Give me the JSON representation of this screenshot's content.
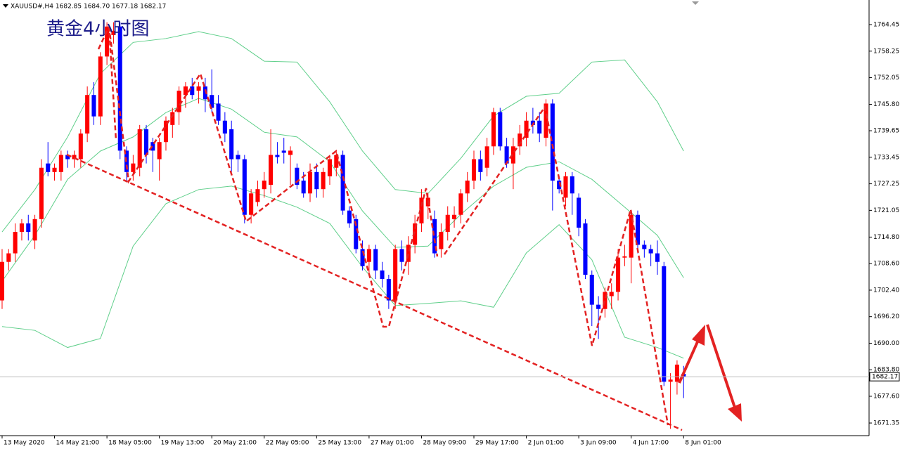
{
  "chart_data": {
    "type": "candlestick",
    "header": "XAUUSD#,H4  1682.85 1684.70 1677.18 1682.17",
    "title": "黄金4小时图",
    "up_color": "#ff0000",
    "down_color": "#0000ff",
    "current_price": 1682.17,
    "ylim": [
      1668.4,
      1770.2
    ],
    "xlim": [
      -0.32,
      132.3
    ],
    "yticks": [
      1671.35,
      {
        "value": 1677.6,
        "label": "1677.60"
      },
      {
        "value": 1683.8,
        "label": "1683.80"
      },
      {
        "value": 1690,
        "label": "1690.00"
      },
      {
        "value": 1696.2,
        "label": "1696.20"
      },
      {
        "value": 1702.4,
        "label": "1702.40"
      },
      {
        "value": 1708.6,
        "label": "1708.60"
      },
      {
        "value": 1714.8,
        "label": "1714.80"
      },
      1721.05,
      1727.25,
      1733.45,
      1739.65,
      {
        "value": 1745.8,
        "label": "1745.80"
      },
      1752.05,
      1758.25,
      1764.45
    ],
    "xticks": [
      {
        "value": 0,
        "label": "13 May 2020"
      },
      {
        "value": 8,
        "label": "14 May 21:00"
      },
      {
        "value": 16,
        "label": "18 May 05:00"
      },
      {
        "value": 24,
        "label": "19 May 13:00"
      },
      {
        "value": 32,
        "label": "20 May 21:00"
      },
      {
        "value": 40,
        "label": "22 May 05:00"
      },
      {
        "value": 48,
        "label": "25 May 13:00"
      },
      {
        "value": 56,
        "label": "27 May 01:00"
      },
      {
        "value": 64,
        "label": "28 May 09:00"
      },
      {
        "value": 72,
        "label": "29 May 17:00"
      },
      {
        "value": 80,
        "label": "2 Jun 01:00"
      },
      {
        "value": 88,
        "label": "3 Jun 09:00"
      },
      {
        "value": 96,
        "label": "4 Jun 17:00"
      },
      {
        "value": 104,
        "label": "8 Jun 01:00"
      }
    ],
    "ohlc": [
      [
        1700,
        1712,
        1698,
        1709
      ],
      [
        1709,
        1712,
        1707,
        1711
      ],
      [
        1711,
        1718,
        1709,
        1716
      ],
      [
        1716,
        1719,
        1714,
        1718
      ],
      [
        1718,
        1720,
        1714,
        1716
      ],
      [
        1714,
        1720,
        1712,
        1719
      ],
      [
        1719,
        1733,
        1717,
        1731
      ],
      [
        1732,
        1737,
        1729,
        1730
      ],
      [
        1730,
        1732,
        1728,
        1731
      ],
      [
        1730,
        1735,
        1728,
        1734
      ],
      [
        1734,
        1735,
        1731,
        1733
      ],
      [
        1733,
        1735,
        1731,
        1734
      ],
      [
        1733,
        1740,
        1731,
        1739
      ],
      [
        1739,
        1750,
        1737,
        1748
      ],
      [
        1748,
        1751,
        1741,
        1743
      ],
      [
        1743,
        1758,
        1741,
        1757
      ],
      [
        1757,
        1765,
        1755,
        1764
      ],
      [
        1762,
        1765,
        1760,
        1763
      ],
      [
        1764,
        1765,
        1733,
        1735
      ],
      [
        1735,
        1736,
        1728,
        1730
      ],
      [
        1730,
        1734,
        1728,
        1732
      ],
      [
        1731,
        1741,
        1729,
        1740
      ],
      [
        1740,
        1741,
        1732,
        1734
      ],
      [
        1737,
        1738,
        1730,
        1735
      ],
      [
        1733,
        1738,
        1728,
        1737
      ],
      [
        1737,
        1743,
        1735,
        1742
      ],
      [
        1741,
        1745,
        1738,
        1744
      ],
      [
        1744,
        1750,
        1741,
        1749
      ],
      [
        1748,
        1751,
        1745,
        1750
      ],
      [
        1750,
        1752,
        1747,
        1748
      ],
      [
        1749,
        1751,
        1746,
        1750
      ],
      [
        1750,
        1752,
        1744,
        1747
      ],
      [
        1748,
        1754,
        1744,
        1745
      ],
      [
        1746,
        1748,
        1741,
        1742
      ],
      [
        1742,
        1744,
        1737,
        1739
      ],
      [
        1740,
        1742,
        1730,
        1733
      ],
      [
        1734,
        1735,
        1730,
        1733
      ],
      [
        1733,
        1734,
        1718,
        1720
      ],
      [
        1720,
        1726,
        1718,
        1725
      ],
      [
        1723,
        1728,
        1722,
        1726
      ],
      [
        1726,
        1730,
        1724,
        1728
      ],
      [
        1727,
        1740,
        1725,
        1734
      ],
      [
        1734,
        1737,
        1732,
        1733.5
      ],
      [
        1735,
        1738,
        1732,
        1734.5
      ],
      [
        1734,
        1736,
        1727,
        1735
      ],
      [
        1731,
        1732,
        1726,
        1727
      ],
      [
        1728,
        1730,
        1724,
        1725
      ],
      [
        1725,
        1732,
        1723,
        1730
      ],
      [
        1730,
        1732,
        1724,
        1726
      ],
      [
        1726,
        1731,
        1724,
        1730
      ],
      [
        1729,
        1734,
        1727,
        1733
      ],
      [
        1731,
        1735,
        1729,
        1734
      ],
      [
        1734,
        1735,
        1720,
        1721
      ],
      [
        1721,
        1722,
        1717,
        1718
      ],
      [
        1719,
        1720,
        1711,
        1712
      ],
      [
        1712,
        1714,
        1707,
        1708
      ],
      [
        1709,
        1713,
        1706,
        1712
      ],
      [
        1712,
        1713,
        1705,
        1707
      ],
      [
        1707,
        1709,
        1703,
        1705
      ],
      [
        1705,
        1706,
        1698,
        1700
      ],
      [
        1700,
        1713,
        1698,
        1712
      ],
      [
        1712,
        1714,
        1707,
        1709
      ],
      [
        1709,
        1715,
        1706,
        1713
      ],
      [
        1713,
        1720,
        1711,
        1718
      ],
      [
        1718,
        1726,
        1716,
        1724
      ],
      [
        1722,
        1725,
        1719,
        1724
      ],
      [
        1719,
        1721,
        1710,
        1711
      ],
      [
        1712,
        1718,
        1710,
        1716
      ],
      [
        1716,
        1722,
        1714,
        1720
      ],
      [
        1719,
        1722,
        1717,
        1720
      ],
      [
        1720,
        1726,
        1718,
        1725
      ],
      [
        1725,
        1730,
        1723,
        1728
      ],
      [
        1728,
        1735,
        1726,
        1733
      ],
      [
        1733,
        1735,
        1728,
        1730
      ],
      [
        1731,
        1738,
        1729,
        1736
      ],
      [
        1736,
        1745,
        1734,
        1744
      ],
      [
        1744,
        1745,
        1735,
        1736
      ],
      [
        1736,
        1738,
        1731,
        1732
      ],
      [
        1732,
        1738,
        1726,
        1736
      ],
      [
        1736,
        1741,
        1734,
        1739
      ],
      [
        1738,
        1744,
        1736,
        1742
      ],
      [
        1742,
        1745,
        1739,
        1741
      ],
      [
        1742,
        1744,
        1737,
        1739
      ],
      [
        1738,
        1747,
        1736,
        1746
      ],
      [
        1746,
        1747,
        1721,
        1728
      ],
      [
        1728,
        1729,
        1725,
        1726
      ],
      [
        1724,
        1730,
        1722,
        1729
      ],
      [
        1729,
        1730,
        1720,
        1725
      ],
      [
        1724,
        1725,
        1715,
        1717
      ],
      [
        1718,
        1719,
        1705,
        1706
      ],
      [
        1706,
        1707,
        1694,
        1699
      ],
      [
        1699,
        1701,
        1691,
        1698
      ],
      [
        1698,
        1703,
        1696,
        1702
      ],
      [
        1701,
        1704,
        1698,
        1702
      ],
      [
        1702,
        1712,
        1700,
        1710
      ],
      [
        1710,
        1713,
        1708,
        1710.3
      ],
      [
        1710,
        1721,
        1704,
        1720
      ],
      [
        1720,
        1721,
        1711,
        1713
      ],
      [
        1713,
        1714,
        1710,
        1712
      ],
      [
        1712,
        1713,
        1708,
        1711
      ],
      [
        1711,
        1714,
        1706,
        1709
      ],
      [
        1708,
        1709,
        1680,
        1681
      ],
      [
        1681,
        1683,
        1670,
        1681.5
      ],
      [
        1681,
        1686,
        1678,
        1685
      ],
      [
        1682.85,
        1684.7,
        1677.18,
        1682.17
      ]
    ],
    "bands": {
      "color": "#5fcf8a",
      "x": [
        0,
        5,
        10,
        15,
        20,
        25,
        30,
        35,
        40,
        45,
        50,
        55,
        60,
        65,
        70,
        75,
        80,
        85,
        90,
        95,
        100,
        104
      ],
      "lines": [
        [
          1716.0,
          1725.9,
          1738.2,
          1753.0,
          1760.3,
          1761.2,
          1762.8,
          1761.2,
          1755.9,
          1755.7,
          1746.4,
          1734.9,
          1725.9,
          1725.0,
          1733.2,
          1743.1,
          1747.7,
          1748.4,
          1755.7,
          1756.2,
          1746.4,
          1734.9
        ],
        [
          1704.5,
          1715.2,
          1728.3,
          1734.9,
          1738.2,
          1743.9,
          1747.2,
          1744.7,
          1739.3,
          1738.2,
          1732.4,
          1720.9,
          1712.4,
          1712.7,
          1720.1,
          1726.7,
          1731.1,
          1732.4,
          1728.3,
          1721.8,
          1715.2,
          1705.3
        ],
        [
          1693.9,
          1693.0,
          1689.0,
          1691.1,
          1712.7,
          1722.6,
          1725.9,
          1726.7,
          1724.5,
          1721.8,
          1718.0,
          1707.8,
          1698.8,
          1699.3,
          1699.9,
          1698.4,
          1711.1,
          1717.7,
          1709.5,
          1691.4,
          1689.0,
          1686.5
        ]
      ]
    }
  }
}
